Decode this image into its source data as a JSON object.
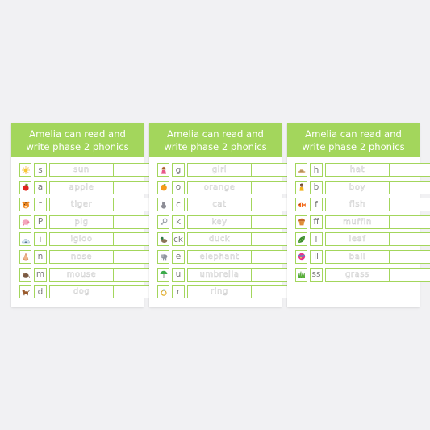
{
  "cards": [
    {
      "title_line1": "Amelia can read and",
      "title_line2": "write phase 2 phonics",
      "rows": [
        {
          "icon": "sun-icon",
          "letter": "s",
          "word": "sun"
        },
        {
          "icon": "apple-icon",
          "letter": "a",
          "word": "apple"
        },
        {
          "icon": "tiger-icon",
          "letter": "t",
          "word": "tiger"
        },
        {
          "icon": "pig-icon",
          "letter": "P",
          "word": "pig"
        },
        {
          "icon": "igloo-icon",
          "letter": "i",
          "word": "igloo"
        },
        {
          "icon": "nose-icon",
          "letter": "n",
          "word": "nose"
        },
        {
          "icon": "mouse-icon",
          "letter": "m",
          "word": "mouse"
        },
        {
          "icon": "dog-icon",
          "letter": "d",
          "word": "dog"
        }
      ]
    },
    {
      "title_line1": "Amelia can read and",
      "title_line2": "write phase 2 phonics",
      "rows": [
        {
          "icon": "girl-icon",
          "letter": "g",
          "word": "girl"
        },
        {
          "icon": "orange-icon",
          "letter": "o",
          "word": "orange"
        },
        {
          "icon": "cat-icon",
          "letter": "c",
          "word": "cat"
        },
        {
          "icon": "key-icon",
          "letter": "k",
          "word": "key"
        },
        {
          "icon": "duck-icon",
          "letter": "ck",
          "word": "duck"
        },
        {
          "icon": "elephant-icon",
          "letter": "e",
          "word": "elephant"
        },
        {
          "icon": "umbrella-icon",
          "letter": "u",
          "word": "umbrella"
        },
        {
          "icon": "ring-icon",
          "letter": "r",
          "word": "ring"
        }
      ]
    },
    {
      "title_line1": "Amelia can read and",
      "title_line2": "write phase 2 phonics",
      "rows": [
        {
          "icon": "hat-icon",
          "letter": "h",
          "word": "hat"
        },
        {
          "icon": "boy-icon",
          "letter": "b",
          "word": "boy"
        },
        {
          "icon": "fish-icon",
          "letter": "f",
          "word": "fish"
        },
        {
          "icon": "muffin-icon",
          "letter": "ff",
          "word": "muffin"
        },
        {
          "icon": "leaf-icon",
          "letter": "l",
          "word": "leaf"
        },
        {
          "icon": "ball-icon",
          "letter": "ll",
          "word": "ball"
        },
        {
          "icon": "grass-icon",
          "letter": "ss",
          "word": "grass"
        }
      ]
    }
  ]
}
